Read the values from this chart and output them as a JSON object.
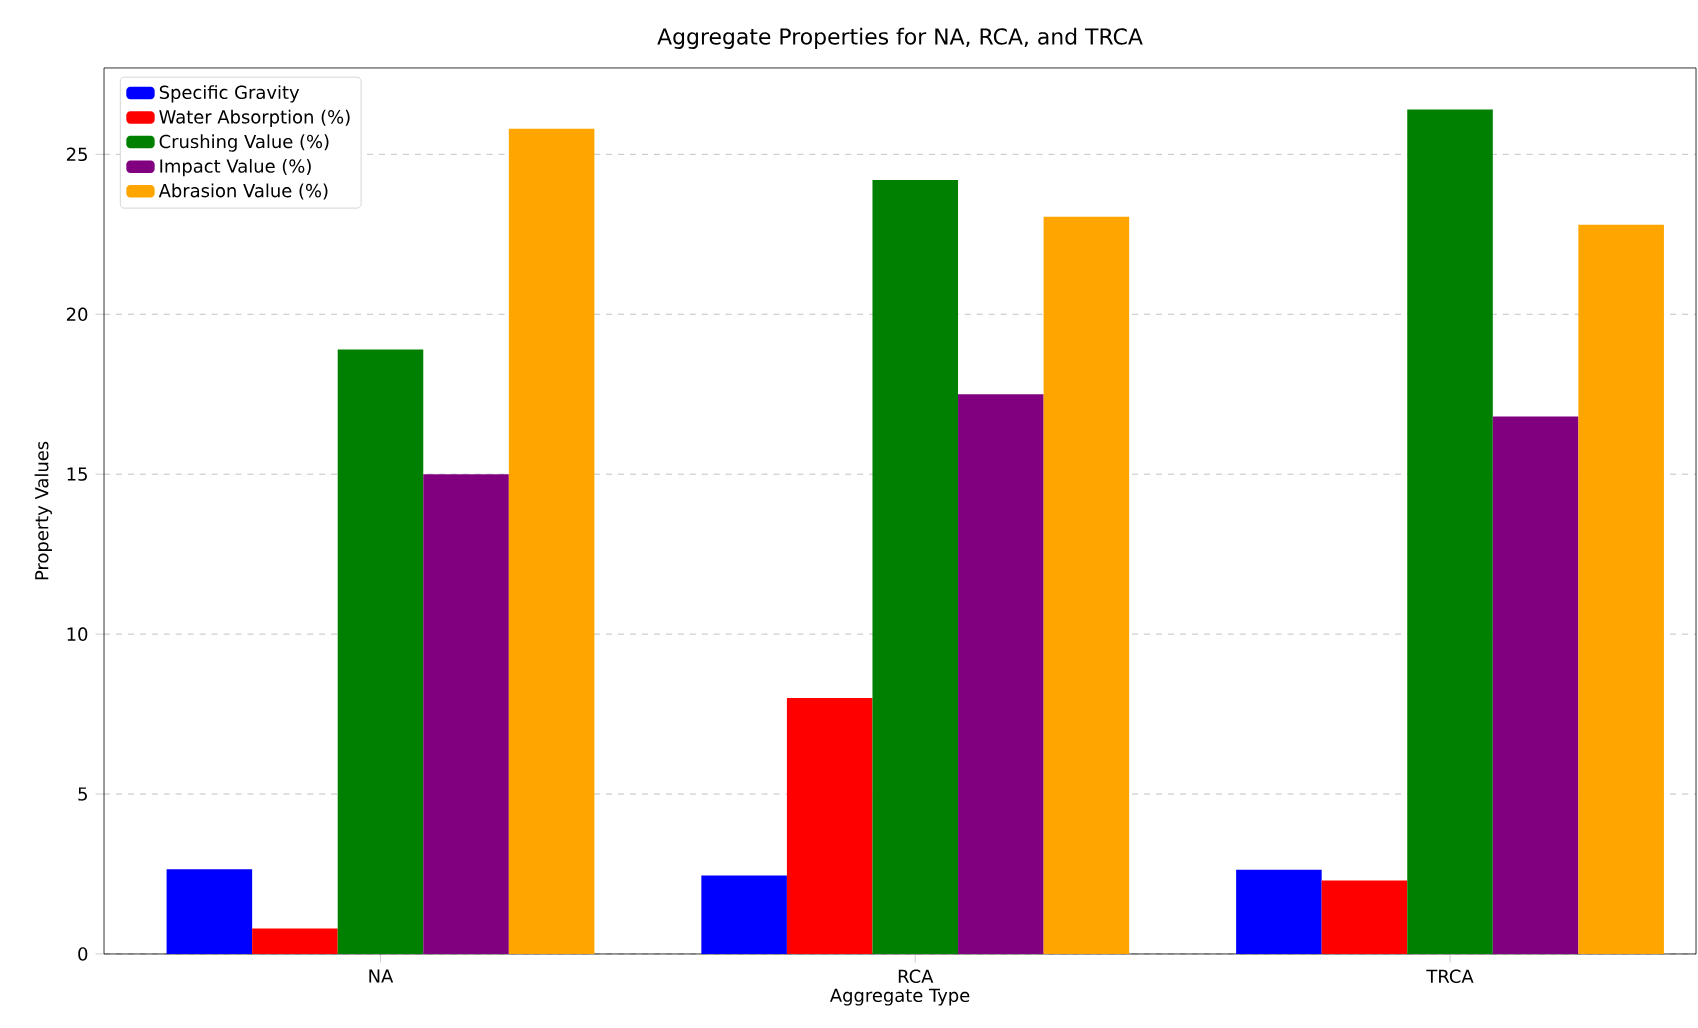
{
  "chart_data": {
    "type": "bar",
    "title": "Aggregate Properties for NA, RCA, and TRCA",
    "xlabel": "Aggregate Type",
    "ylabel": "Property Values",
    "categories": [
      "NA",
      "RCA",
      "TRCA"
    ],
    "series": [
      {
        "name": "Specific Gravity",
        "color": "#0000ff",
        "values": [
          2.65,
          2.45,
          2.63
        ]
      },
      {
        "name": "Water Absorption (%)",
        "color": "#ff0000",
        "values": [
          0.8,
          8.0,
          2.3
        ]
      },
      {
        "name": "Crushing Value (%)",
        "color": "#008000",
        "values": [
          18.9,
          24.2,
          26.4
        ]
      },
      {
        "name": "Impact Value (%)",
        "color": "#800080",
        "values": [
          15.0,
          17.5,
          16.8
        ]
      },
      {
        "name": "Abrasion Value (%)",
        "color": "#ffa500",
        "values": [
          25.8,
          23.05,
          22.8
        ]
      }
    ],
    "ylim": [
      0,
      27.7
    ],
    "yticks": [
      0,
      5,
      10,
      15,
      20,
      25
    ],
    "grid": "y",
    "legend": "top left"
  }
}
